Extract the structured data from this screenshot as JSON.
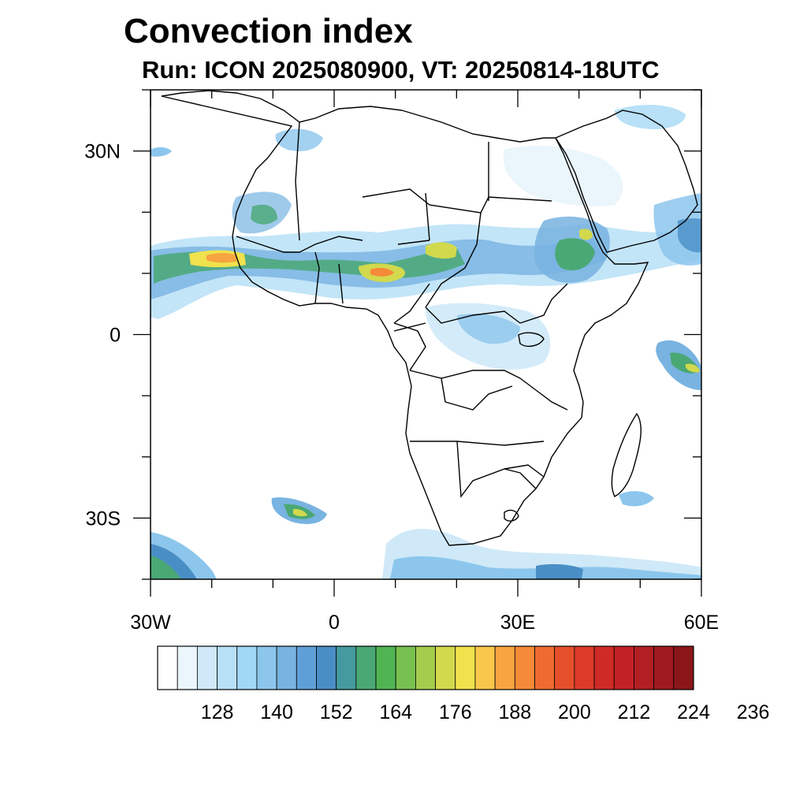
{
  "title": "Convection index",
  "subtitle": "Run: ICON 2025080900,  VT: 20250814-18UTC",
  "map": {
    "lat_labels": [
      "30N",
      "0",
      "30S"
    ],
    "lon_labels": [
      "30W",
      "0",
      "30E",
      "60E"
    ],
    "lat_values": [
      30,
      0,
      -30
    ],
    "lon_values": [
      -30,
      0,
      30,
      60
    ],
    "lon_range": [
      -30,
      60
    ],
    "lat_range": [
      -40,
      40
    ]
  },
  "colorbar": {
    "tick_labels": [
      "128",
      "140",
      "152",
      "164",
      "176",
      "188",
      "200",
      "212",
      "224",
      "236"
    ],
    "colors": [
      "#ffffff",
      "#eaf5fc",
      "#cfe9f8",
      "#b8e0f7",
      "#a0d8f5",
      "#8cc6ec",
      "#78b3e1",
      "#5f9fd7",
      "#4a8ec6",
      "#449a9e",
      "#4aa874",
      "#50b452",
      "#78c150",
      "#a6cc4e",
      "#d2d94d",
      "#f0e24c",
      "#f9c84a",
      "#f6a541",
      "#f58a39",
      "#ed6a31",
      "#e5502b",
      "#db3b28",
      "#cf2b26",
      "#c22225",
      "#b11f23",
      "#9e1a1e",
      "#8b161a"
    ]
  }
}
